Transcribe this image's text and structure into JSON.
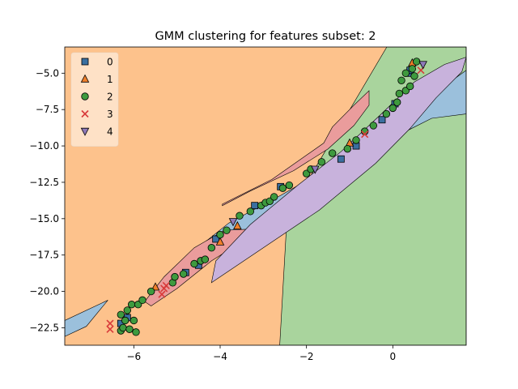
{
  "chart_data": {
    "type": "scatter",
    "title": "GMM clustering for features subset: 2",
    "xlabel": "",
    "ylabel": "",
    "xlim": [
      -7.6,
      1.7
    ],
    "ylim": [
      -23.7,
      -3.2
    ],
    "grid": false,
    "legend_position": "top-left",
    "x_ticks": [
      -6,
      -4,
      -2,
      0
    ],
    "x_tick_labels": [
      "−6",
      "−4",
      "−2",
      "0"
    ],
    "y_ticks": [
      -5.0,
      -7.5,
      -10.0,
      -12.5,
      -15.0,
      -17.5,
      -20.0,
      -22.5
    ],
    "y_tick_labels": [
      "−5.0",
      "−7.5",
      "−10.0",
      "−12.5",
      "−15.0",
      "−17.5",
      "−20.0",
      "−22.5"
    ],
    "region_colors": {
      "0": "#9bc0dc",
      "1": "#fdc28c",
      "2": "#a9d49d",
      "3": "#ea9c9c",
      "4": "#c8b2dc"
    },
    "decision_regions": {
      "class_2_boundary": [
        [
          -0.14,
          -3.2
        ],
        [
          1.7,
          -3.2
        ],
        [
          1.7,
          -23.7
        ],
        [
          -2.62,
          -23.7
        ],
        [
          -2.45,
          -14.8
        ]
      ],
      "class_3_region": [
        [
          -3.95,
          -14.0
        ],
        [
          -2.8,
          -12.3
        ],
        [
          -1.6,
          -9.8
        ],
        [
          -1.4,
          -8.7
        ],
        [
          -0.9,
          -7.2
        ],
        [
          -0.55,
          -6.2
        ],
        [
          -0.55,
          -7.2
        ],
        [
          -0.9,
          -8.6
        ],
        [
          -1.5,
          -10.2
        ],
        [
          -2.3,
          -11.7
        ],
        [
          -3.3,
          -13.1
        ],
        [
          -3.95,
          -14.1
        ]
      ],
      "class_3_tail": [
        [
          -5.6,
          -21.0
        ],
        [
          -5.0,
          -19.8
        ],
        [
          -4.2,
          -17.9
        ],
        [
          -3.4,
          -16.4
        ],
        [
          -3.2,
          -15.7
        ],
        [
          -3.9,
          -15.8
        ],
        [
          -4.6,
          -17.0
        ],
        [
          -5.3,
          -19.0
        ],
        [
          -5.75,
          -20.7
        ]
      ],
      "class_0_band": [
        [
          -5.3,
          -19.6
        ],
        [
          -4.6,
          -17.2
        ],
        [
          -3.8,
          -15.3
        ],
        [
          -2.6,
          -13.4
        ],
        [
          -1.3,
          -11.2
        ],
        [
          -0.4,
          -9.0
        ],
        [
          0.3,
          -7.6
        ],
        [
          1.0,
          -6.3
        ],
        [
          1.7,
          -4.8
        ],
        [
          1.7,
          -7.8
        ],
        [
          0.9,
          -8.1
        ],
        [
          0.1,
          -9.3
        ],
        [
          -0.8,
          -10.8
        ],
        [
          -1.9,
          -12.8
        ],
        [
          -2.8,
          -14.9
        ],
        [
          -3.9,
          -16.9
        ],
        [
          -5.0,
          -18.9
        ]
      ],
      "class_0_tail": [
        [
          -7.6,
          -22.0
        ],
        [
          -6.6,
          -20.6
        ],
        [
          -7.1,
          -22.4
        ],
        [
          -7.6,
          -23.1
        ]
      ],
      "class_4_region": [
        [
          -4.2,
          -19.4
        ],
        [
          -3.0,
          -17.0
        ],
        [
          -1.7,
          -14.4
        ],
        [
          -0.4,
          -11.2
        ],
        [
          0.4,
          -8.8
        ],
        [
          1.0,
          -6.7
        ],
        [
          1.6,
          -4.9
        ],
        [
          1.7,
          -3.9
        ],
        [
          1.2,
          -4.4
        ],
        [
          0.5,
          -5.6
        ],
        [
          -0.3,
          -7.9
        ],
        [
          -1.2,
          -10.4
        ],
        [
          -2.2,
          -12.7
        ],
        [
          -3.3,
          -15.4
        ],
        [
          -4.1,
          -17.9
        ]
      ]
    },
    "series": [
      {
        "name": "0",
        "marker": "square",
        "color": "#3a6fa0",
        "points": [
          [
            -6.3,
            -22.2
          ],
          [
            -6.15,
            -21.8
          ],
          [
            -4.8,
            -18.7
          ],
          [
            -4.5,
            -18.2
          ],
          [
            -4.1,
            -16.4
          ],
          [
            -3.2,
            -14.1
          ],
          [
            -2.6,
            -12.8
          ],
          [
            -1.2,
            -10.9
          ],
          [
            -0.85,
            -10.0
          ],
          [
            -0.25,
            -8.2
          ],
          [
            0.05,
            -7.1
          ],
          [
            0.35,
            -5.0
          ],
          [
            0.4,
            -4.8
          ]
        ]
      },
      {
        "name": "1",
        "marker": "triangle-up",
        "color": "#f07f2a",
        "points": [
          [
            -5.5,
            -19.7
          ],
          [
            -4.0,
            -16.6
          ],
          [
            -3.6,
            -15.5
          ],
          [
            -1.0,
            -9.8
          ],
          [
            0.45,
            -4.3
          ]
        ]
      },
      {
        "name": "2",
        "marker": "circle",
        "color": "#3e9a3e",
        "points": [
          [
            -6.3,
            -22.7
          ],
          [
            -6.3,
            -21.6
          ],
          [
            -6.2,
            -22.0
          ],
          [
            -6.25,
            -22.5
          ],
          [
            -6.1,
            -22.6
          ],
          [
            -6.15,
            -21.3
          ],
          [
            -6.0,
            -22.0
          ],
          [
            -5.95,
            -22.8
          ],
          [
            -6.05,
            -20.9
          ],
          [
            -5.9,
            -20.9
          ],
          [
            -5.8,
            -20.6
          ],
          [
            -5.6,
            -20.0
          ],
          [
            -5.1,
            -19.4
          ],
          [
            -5.05,
            -19.0
          ],
          [
            -4.85,
            -18.8
          ],
          [
            -4.6,
            -18.1
          ],
          [
            -4.45,
            -17.9
          ],
          [
            -4.35,
            -17.8
          ],
          [
            -4.2,
            -17.0
          ],
          [
            -4.0,
            -16.1
          ],
          [
            -3.85,
            -15.8
          ],
          [
            -3.55,
            -14.8
          ],
          [
            -3.3,
            -14.5
          ],
          [
            -3.05,
            -14.1
          ],
          [
            -2.95,
            -13.9
          ],
          [
            -2.85,
            -13.8
          ],
          [
            -2.75,
            -13.5
          ],
          [
            -2.55,
            -12.9
          ],
          [
            -2.4,
            -12.7
          ],
          [
            -2.0,
            -11.9
          ],
          [
            -1.9,
            -11.6
          ],
          [
            -1.65,
            -11.1
          ],
          [
            -1.4,
            -10.5
          ],
          [
            -1.05,
            -10.2
          ],
          [
            -0.85,
            -9.6
          ],
          [
            -0.65,
            -9.0
          ],
          [
            -0.45,
            -8.6
          ],
          [
            -0.15,
            -7.8
          ],
          [
            0.0,
            -7.4
          ],
          [
            0.1,
            -7.0
          ],
          [
            0.15,
            -6.4
          ],
          [
            0.3,
            -6.2
          ],
          [
            0.4,
            -5.9
          ],
          [
            0.2,
            -5.5
          ],
          [
            0.3,
            -5.0
          ],
          [
            0.5,
            -5.2
          ],
          [
            0.55,
            -4.2
          ],
          [
            0.45,
            -4.7
          ]
        ]
      },
      {
        "name": "3",
        "marker": "x",
        "color": "#d83a3a",
        "points": [
          [
            -6.55,
            -22.2
          ],
          [
            -6.55,
            -22.6
          ],
          [
            -5.35,
            -20.2
          ],
          [
            -5.3,
            -19.8
          ],
          [
            -5.25,
            -19.6
          ],
          [
            -0.65,
            -9.2
          ],
          [
            0.65,
            -4.8
          ]
        ]
      },
      {
        "name": "4",
        "marker": "triangle-down",
        "color": "#8e79b8",
        "points": [
          [
            -3.7,
            -15.2
          ],
          [
            -1.8,
            -11.6
          ],
          [
            0.7,
            -4.4
          ]
        ]
      }
    ]
  }
}
